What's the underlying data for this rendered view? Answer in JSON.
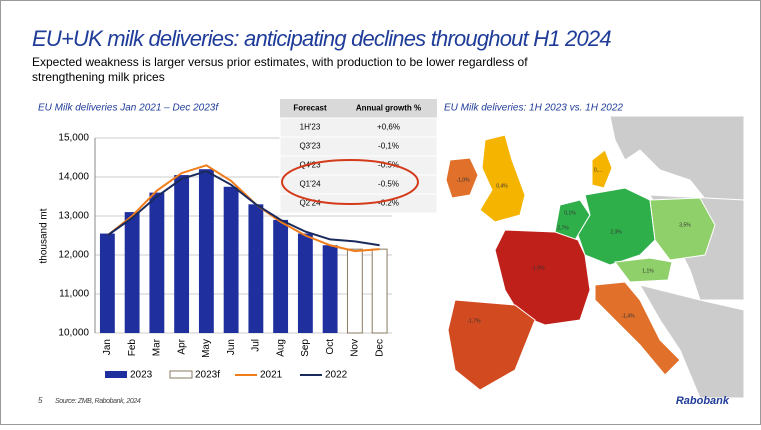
{
  "title": "EU+UK milk deliveries: anticipating declines throughout H1 2024",
  "subtitle": [
    "Expected weakness is larger versus prior estimates, with production to be lower regardless of",
    "strengthening milk prices"
  ],
  "chart_data": {
    "type": "bar",
    "title": "EU Milk deliveries Jan 2021 – Dec 2023f",
    "y_label": "thousand mt",
    "categories": [
      "Jan",
      "Feb",
      "Mar",
      "Apr",
      "May",
      "Jun",
      "Jul",
      "Aug",
      "Sep",
      "Oct",
      "Nov",
      "Dec"
    ],
    "series": [
      {
        "name": "2023",
        "kind": "bar",
        "color": "#1f2f9e",
        "values": [
          12550,
          13100,
          13600,
          14050,
          14200,
          13750,
          13300,
          12900,
          12550,
          12250,
          null,
          null
        ]
      },
      {
        "name": "2023f",
        "kind": "bar",
        "color": "#ffffff",
        "values": [
          null,
          null,
          null,
          null,
          null,
          null,
          null,
          null,
          null,
          null,
          12150,
          12150
        ]
      },
      {
        "name": "2021",
        "kind": "line",
        "color": "#f07c1a",
        "values": [
          12500,
          13000,
          13650,
          14100,
          14300,
          13900,
          13300,
          12850,
          12500,
          12250,
          12100,
          12150
        ]
      },
      {
        "name": "2022",
        "kind": "line",
        "color": "#1b2a5c",
        "values": [
          12500,
          12950,
          13500,
          13950,
          14150,
          13800,
          13300,
          12900,
          12600,
          12400,
          12350,
          12250
        ]
      }
    ],
    "ylim": [
      10000,
      15000
    ],
    "yticks": [
      {
        "value": 10000,
        "label": "10,000"
      },
      {
        "value": 11000,
        "label": "11,000"
      },
      {
        "value": 12000,
        "label": "12,000"
      },
      {
        "value": 13000,
        "label": "13,000"
      },
      {
        "value": 14000,
        "label": "14,000"
      },
      {
        "value": 15000,
        "label": "15,000"
      }
    ],
    "grid": true
  },
  "table": {
    "header": [
      "Forecast",
      "Annual growth %"
    ],
    "rows": [
      [
        "1H'23",
        "+0,6%"
      ],
      [
        "Q3'23",
        "-0,1%"
      ],
      [
        "Q4'23",
        "-0.5%"
      ],
      [
        "Q1'24",
        "-0.5%"
      ],
      [
        "Q2'24",
        "-0.2%"
      ]
    ]
  },
  "map": {
    "title": "EU Milk deliveries: 1H 2023 vs. 1H 2022",
    "regions": [
      {
        "label": "-1,0%"
      },
      {
        "label": "0,4%"
      },
      {
        "label": "0,..."
      },
      {
        "label": "0,1%"
      },
      {
        "label": "2,7%"
      },
      {
        "label": "2,3%"
      },
      {
        "label": "3,5%"
      },
      {
        "label": "1,1%"
      },
      {
        "label": "-1,9%"
      },
      {
        "label": "-1,7%"
      },
      {
        "label": "-1,4%"
      }
    ]
  },
  "footer": {
    "page": "5",
    "source": "Source: ZMB, Rabobank, 2024",
    "brand": "Rabobank"
  }
}
